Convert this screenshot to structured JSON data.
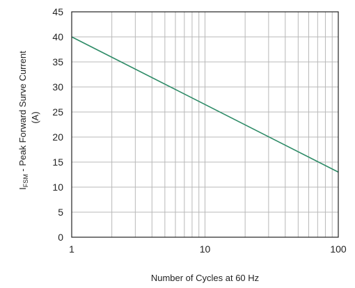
{
  "chart_data": {
    "type": "line",
    "x_scale": "log",
    "grid": true,
    "xlabel": "Number of Cycles at 60 Hz",
    "ylabel_main": "I",
    "ylabel_sub": "FSM",
    "ylabel_rest": " - Peak Forward Surve Current",
    "ylabel_line2": "(A)",
    "xlim": [
      1,
      100
    ],
    "ylim": [
      0,
      45
    ],
    "x_ticks": [
      1,
      10,
      100
    ],
    "x_tick_labels": [
      "1",
      "10",
      "100"
    ],
    "y_ticks": [
      0,
      5,
      10,
      15,
      20,
      25,
      30,
      35,
      40,
      45
    ],
    "y_tick_labels": [
      "0",
      "5",
      "10",
      "15",
      "20",
      "25",
      "30",
      "35",
      "40",
      "45"
    ],
    "series": [
      {
        "x": [
          1,
          100
        ],
        "y": [
          40,
          13
        ],
        "color": "#2e8b67"
      }
    ]
  }
}
